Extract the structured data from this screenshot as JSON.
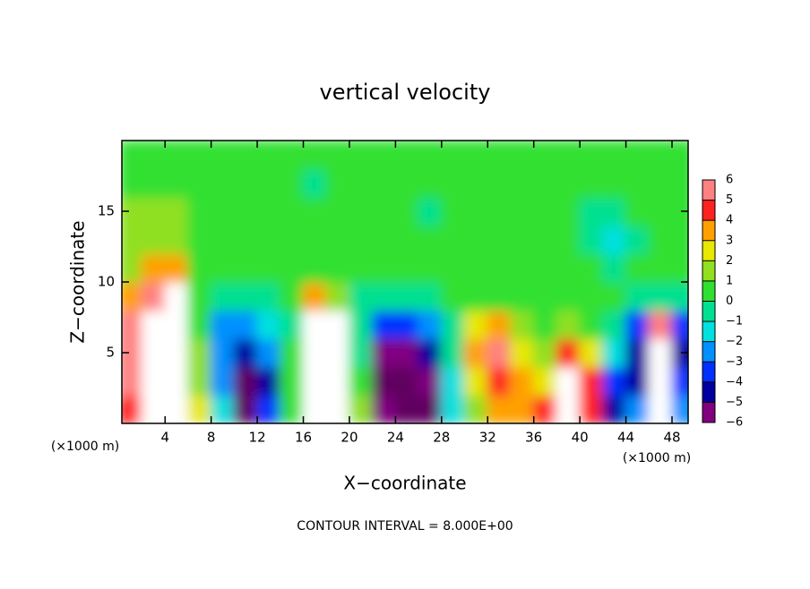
{
  "chart_data": {
    "type": "contour",
    "title": "vertical velocity",
    "xlabel": "X−coordinate",
    "ylabel": "Z−coordinate",
    "x_unit": "(×1000 m)",
    "y_unit": "(×1000 m)",
    "footer": "CONTOUR INTERVAL = 8.000E+00",
    "xlim": [
      0.25,
      49.4
    ],
    "ylim": [
      0,
      20
    ],
    "xticks": [
      4,
      8,
      12,
      16,
      20,
      24,
      28,
      32,
      36,
      40,
      44,
      48
    ],
    "yticks": [
      5,
      10,
      15
    ],
    "x": [
      1,
      3,
      5,
      7,
      9,
      11,
      13,
      15,
      17,
      19,
      21,
      23,
      25,
      27,
      29,
      31,
      33,
      35,
      37,
      39,
      41,
      43,
      45,
      47,
      49
    ],
    "z": [
      1,
      3,
      5,
      7,
      9,
      11,
      13,
      15,
      17,
      19
    ],
    "values": [
      [
        4,
        8,
        8,
        2,
        -2,
        -7,
        -4,
        0,
        7,
        6,
        1,
        -6,
        -7,
        -7,
        -2,
        1,
        3,
        3,
        4,
        7,
        4,
        -5,
        -3,
        7,
        -3
      ],
      [
        5,
        8,
        8,
        1,
        -3,
        -7,
        -5,
        0.5,
        8,
        7,
        0,
        -7,
        -7,
        -6,
        -2,
        2,
        4,
        3,
        2,
        7,
        4,
        -4,
        -5,
        7,
        -4
      ],
      [
        5,
        8,
        8,
        1,
        -3,
        -5,
        -3,
        0,
        8,
        8,
        -1,
        -6,
        -6,
        -5,
        -1,
        3,
        5,
        2,
        1,
        4,
        2,
        -2,
        -5,
        8,
        -5
      ],
      [
        5,
        8,
        8,
        0,
        -3,
        -3,
        -2,
        -0.5,
        7,
        6,
        -1,
        -4,
        -4,
        -3,
        -0.5,
        2,
        3,
        1,
        0.5,
        1,
        0.5,
        -0.5,
        -4,
        5,
        -4
      ],
      [
        3,
        5,
        6,
        0,
        -1,
        -1,
        -0.5,
        0,
        3,
        1,
        -0.5,
        -1,
        -1,
        -0.5,
        0,
        0.5,
        0.5,
        0.5,
        0.3,
        0.3,
        0.3,
        0.2,
        -1,
        -1,
        -1
      ],
      [
        1,
        3,
        3,
        0.5,
        0.2,
        0,
        0,
        0.2,
        0.5,
        0,
        0.3,
        0.3,
        0.2,
        0.2,
        0.3,
        0.3,
        0.3,
        0.3,
        0.3,
        0.3,
        0.2,
        -1,
        0,
        0.2,
        0
      ],
      [
        1.5,
        1.5,
        1.5,
        0.5,
        0.5,
        0.3,
        0.2,
        0.2,
        0.5,
        0.3,
        0.3,
        0.3,
        0.3,
        0.2,
        0.3,
        0.3,
        0.3,
        0.3,
        0.3,
        0.3,
        -0.5,
        -2,
        -0.5,
        0.2,
        0.2
      ],
      [
        1,
        1,
        1,
        0.5,
        0.5,
        0.3,
        0.2,
        0.3,
        0.5,
        0.3,
        0.3,
        0.3,
        0.3,
        -0.2,
        0.3,
        0.3,
        0.3,
        0.3,
        0.3,
        0.3,
        -0.3,
        -0.5,
        0.2,
        0.2,
        0.2
      ],
      [
        0.5,
        0.5,
        0.5,
        0.3,
        0.3,
        0.3,
        0.3,
        0.3,
        -0.2,
        0.2,
        0.3,
        0.3,
        0.3,
        0.2,
        0.3,
        0.3,
        0.3,
        0.3,
        0.3,
        0.3,
        0.3,
        0.2,
        0.2,
        0.2,
        0.2
      ],
      [
        0.5,
        0.5,
        0.5,
        0.3,
        0.3,
        0.3,
        0.3,
        0.3,
        0.3,
        0.3,
        0.3,
        0.3,
        0.3,
        0.3,
        0.3,
        0.3,
        0.3,
        0.3,
        0.3,
        0.3,
        0.3,
        0.3,
        0.3,
        0.3,
        0.3
      ]
    ],
    "colorbar_ticks": [
      {
        "value": -6,
        "label": "−6"
      },
      {
        "value": -5,
        "label": "−5"
      },
      {
        "value": -4,
        "label": "−4"
      },
      {
        "value": -3,
        "label": "−3"
      },
      {
        "value": -2,
        "label": "−2"
      },
      {
        "value": -1,
        "label": "−1"
      },
      0,
      1,
      2,
      3,
      4,
      5,
      6
    ],
    "colors": [
      "#800080",
      "#0000a0",
      "#0030ff",
      "#0090ff",
      "#00e0e0",
      "#00e090",
      "#30e030",
      "#90e020",
      "#e8e800",
      "#ffa000",
      "#ff2020",
      "#ff8080"
    ],
    "over_color": "#ffffff",
    "under_color": "#600060"
  }
}
